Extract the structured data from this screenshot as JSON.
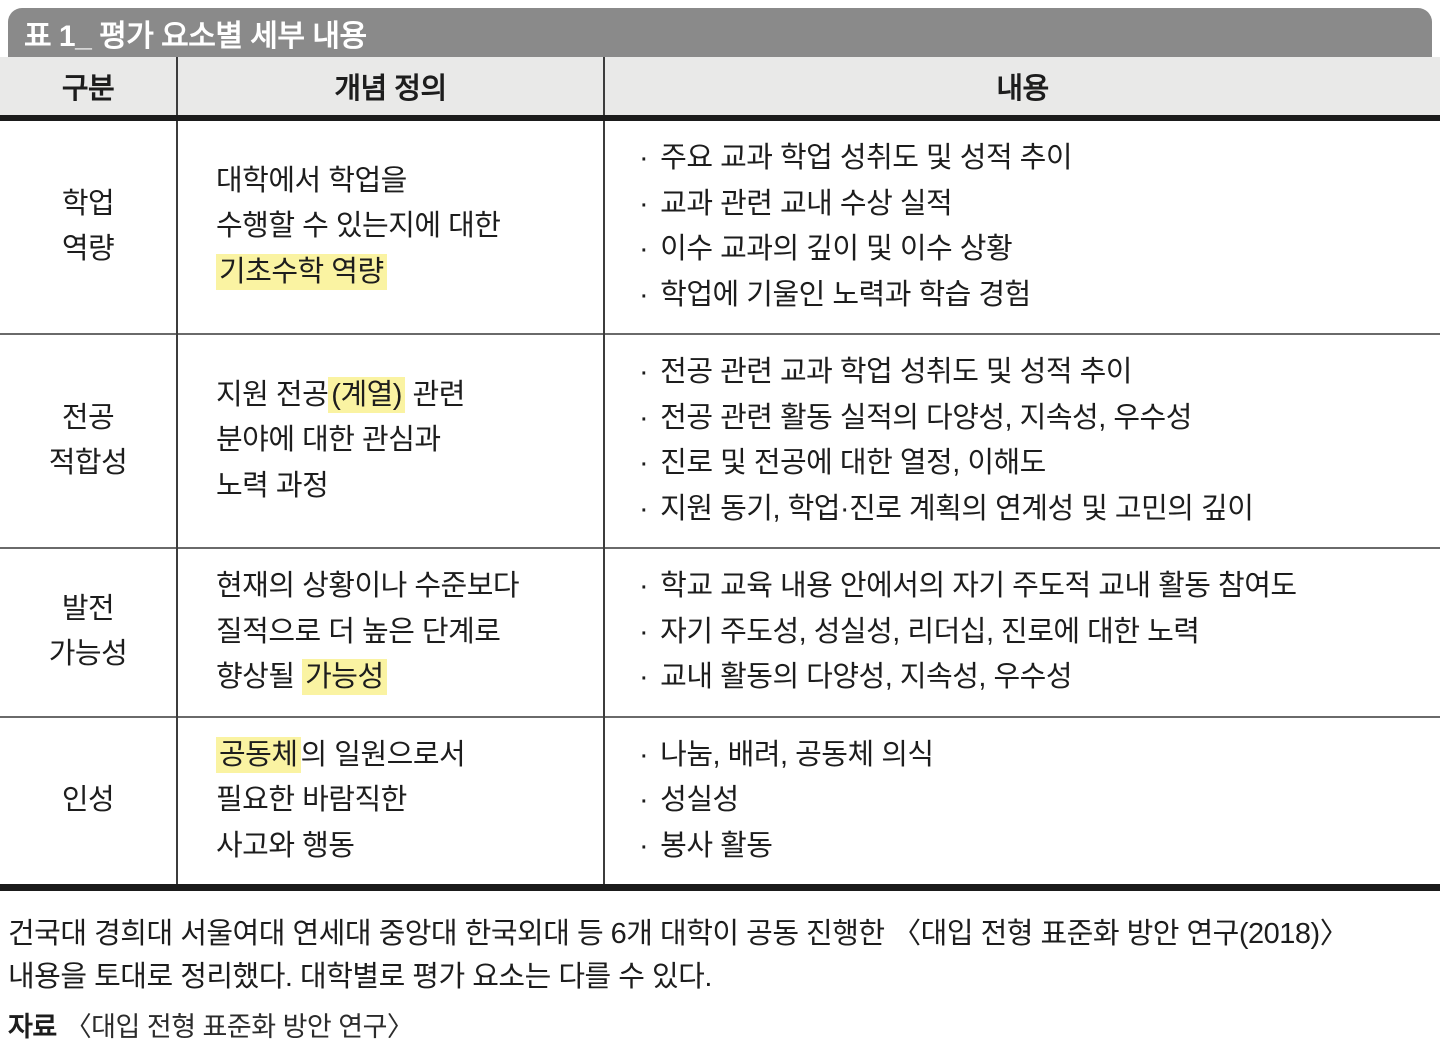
{
  "table": {
    "title": "표 1_ 평가 요소별 세부 내용",
    "columns": [
      "구분",
      "개념 정의",
      "내용"
    ],
    "bullet_char": "·",
    "rows": [
      {
        "category": "학업\n역량",
        "definition": [
          {
            "text": "대학에서 학업을\n수행할 수 있는지에 대한\n",
            "highlight": false
          },
          {
            "text": "기초수학 역량",
            "highlight": true
          }
        ],
        "items": [
          "주요 교과 학업 성취도 및 성적 추이",
          "교과 관련 교내 수상 실적",
          "이수 교과의 깊이 및 이수 상황",
          "학업에 기울인 노력과 학습 경험"
        ]
      },
      {
        "category": "전공\n적합성",
        "definition": [
          {
            "text": "지원 전공",
            "highlight": false
          },
          {
            "text": "(계열)",
            "highlight": true
          },
          {
            "text": " 관련\n분야에 대한 관심과\n노력 과정",
            "highlight": false
          }
        ],
        "items": [
          "전공 관련 교과 학업 성취도 및 성적 추이",
          "전공 관련 활동 실적의 다양성, 지속성, 우수성",
          "진로 및 전공에 대한 열정, 이해도",
          "지원 동기, 학업·진로 계획의 연계성 및 고민의 깊이"
        ]
      },
      {
        "category": "발전\n가능성",
        "definition": [
          {
            "text": "현재의 상황이나 수준보다\n질적으로 더 높은 단계로\n향상될 ",
            "highlight": false
          },
          {
            "text": "가능성",
            "highlight": true
          }
        ],
        "items": [
          "학교 교육 내용 안에서의 자기 주도적 교내 활동 참여도",
          "자기 주도성, 성실성, 리더십, 진로에 대한 노력",
          "교내 활동의 다양성, 지속성, 우수성"
        ]
      },
      {
        "category": "인성",
        "definition": [
          {
            "text": "공동체",
            "highlight": true
          },
          {
            "text": "의 일원으로서\n필요한 바람직한\n사고와 행동",
            "highlight": false
          }
        ],
        "items": [
          "나눔, 배려, 공동체 의식",
          "성실성",
          "봉사 활동"
        ]
      }
    ]
  },
  "footer": {
    "note_lines": [
      "건국대 경희대 서울여대 연세대 중앙대 한국외대 등 6개 대학이 공동 진행한 〈대입 전형 표준화 방안 연구(2018)〉",
      "내용을 토대로 정리했다. 대학별로 평가 요소는 다를 수 있다."
    ],
    "source_label": "자료",
    "source_value": "〈대입 전형 표준화 방안 연구〉"
  },
  "colors": {
    "title_bar": "#8a8a8a",
    "header_bg": "#e9e9e8",
    "highlight": "#faf3a2",
    "thick_border": "#1b1b1b",
    "row_border": "#6a6a6a",
    "column_border": "#3c3c3c",
    "text": "#1d1d1d"
  }
}
